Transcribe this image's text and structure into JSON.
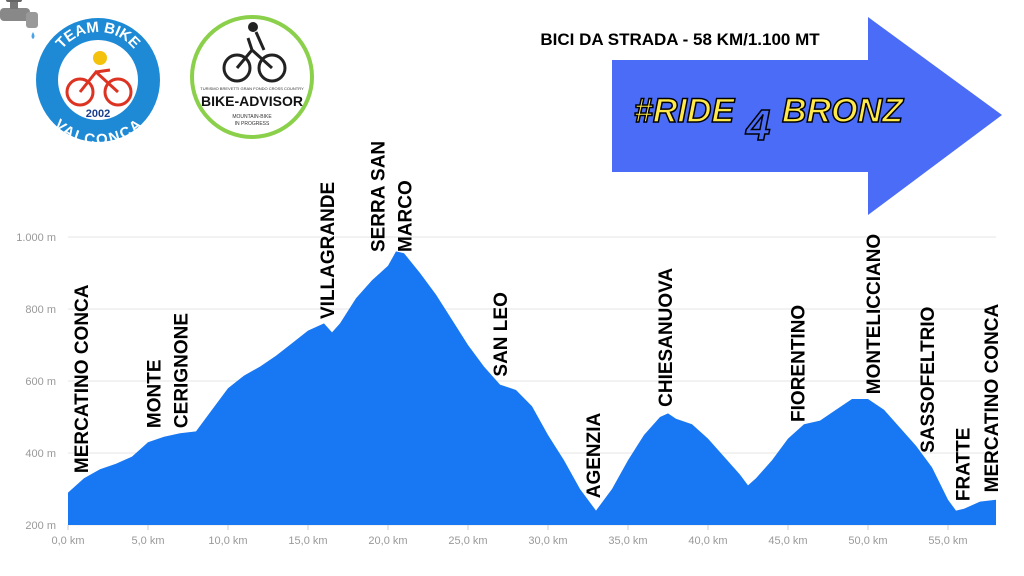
{
  "chart_data": {
    "type": "area",
    "title": "BICI DA STRADA - 58 KM/1.100 MT",
    "x": [
      0,
      1,
      2,
      3,
      4,
      5,
      6,
      7,
      8,
      9,
      10,
      11,
      12,
      13,
      14,
      15,
      16,
      16.5,
      17,
      18,
      19,
      20,
      20.5,
      21,
      22,
      23,
      24,
      25,
      26,
      27,
      28,
      29,
      30,
      31,
      32,
      33,
      34,
      35,
      36,
      37,
      37.5,
      38,
      39,
      40,
      41,
      42,
      42.5,
      43,
      44,
      45,
      46,
      47,
      48,
      49,
      50,
      51,
      52,
      53,
      54,
      55,
      55.5,
      56,
      57,
      58
    ],
    "values": [
      290,
      330,
      355,
      370,
      390,
      430,
      445,
      455,
      460,
      520,
      580,
      615,
      640,
      670,
      705,
      740,
      760,
      735,
      760,
      830,
      880,
      920,
      960,
      955,
      900,
      840,
      770,
      700,
      640,
      590,
      575,
      530,
      450,
      380,
      300,
      240,
      300,
      380,
      450,
      500,
      510,
      495,
      480,
      440,
      390,
      340,
      310,
      330,
      380,
      440,
      480,
      490,
      520,
      550,
      550,
      520,
      470,
      420,
      360,
      270,
      240,
      245,
      265,
      270
    ],
    "color": "#1877f2",
    "xlim": [
      0,
      58
    ],
    "ylim": [
      200,
      1000
    ],
    "xticks": [
      {
        "value": 0,
        "label": "0,0 km"
      },
      {
        "value": 5,
        "label": "5,0 km"
      },
      {
        "value": 10,
        "label": "10,0 km"
      },
      {
        "value": 15,
        "label": "15,0 km"
      },
      {
        "value": 20,
        "label": "20,0 km"
      },
      {
        "value": 25,
        "label": "25,0 km"
      },
      {
        "value": 30,
        "label": "30,0 km"
      },
      {
        "value": 35,
        "label": "35,0 km"
      },
      {
        "value": 40,
        "label": "40,0 km"
      },
      {
        "value": 45,
        "label": "45,0 km"
      },
      {
        "value": 50,
        "label": "50,0 km"
      },
      {
        "value": 55,
        "label": "55,0 km"
      }
    ],
    "yticks": [
      {
        "value": 200,
        "label": "200 m"
      },
      {
        "value": 400,
        "label": "400 m"
      },
      {
        "value": 600,
        "label": "600 m"
      },
      {
        "value": 800,
        "label": "800 m"
      },
      {
        "value": 1000,
        "label": "1.000 m"
      }
    ],
    "grid": true,
    "annotations": [
      {
        "x": 0.8,
        "lines": [
          "MERCATINO CONCA"
        ]
      },
      {
        "x": 6.2,
        "lines": [
          "MONTE",
          "CERIGNONE"
        ]
      },
      {
        "x": 16.2,
        "lines": [
          "VILLAGRANDE"
        ]
      },
      {
        "x": 20.2,
        "lines": [
          "SERRA SAN",
          "MARCO"
        ]
      },
      {
        "x": 27,
        "lines": [
          "SAN LEO"
        ]
      },
      {
        "x": 32.8,
        "lines": [
          "AGENZIA"
        ]
      },
      {
        "x": 37.3,
        "lines": [
          "CHIESANUOVA"
        ]
      },
      {
        "x": 45.6,
        "lines": [
          "FIORENTINO"
        ]
      },
      {
        "x": 50.3,
        "lines": [
          "MONTELICCIANO"
        ]
      },
      {
        "x": 53.7,
        "lines": [
          "SASSOFELTRIO"
        ]
      },
      {
        "x": 55.9,
        "lines": [
          "FRATTE"
        ]
      },
      {
        "x": 57.7,
        "lines": [
          "MERCATINO CONCA"
        ]
      }
    ]
  },
  "banner": {
    "left": "#RIDE",
    "digit": "4",
    "right": "BRONZ"
  },
  "logos": {
    "team_bike": {
      "top": "TEAM BIKE",
      "bottom": "VALCONCA",
      "year": "2002"
    },
    "bike_advisor": {
      "name": "BIKE-ADVISOR",
      "disciplines": "TURISMO  BREVETTI  GRAN FONDO  CROSS COUNTRY",
      "tagline": [
        "MOUNTAIN-BIKE",
        "IN PROGRESS"
      ]
    }
  }
}
